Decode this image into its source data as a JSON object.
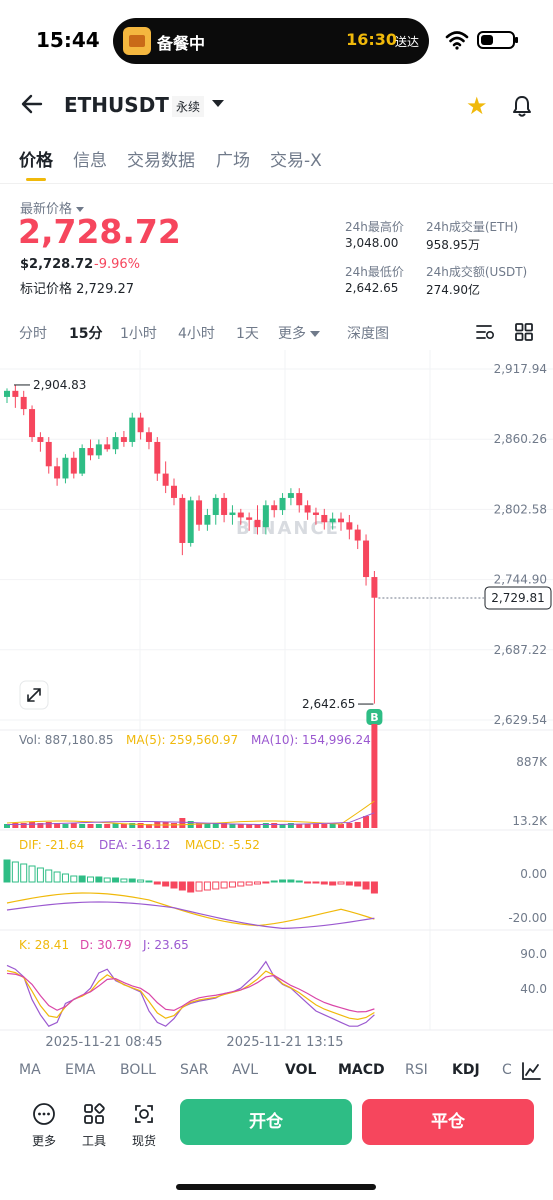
{
  "status": {
    "time": "15:44",
    "island_label": "备餐中",
    "island_time": "16:30",
    "island_send": "送达"
  },
  "header": {
    "symbol": "ETHUSDT",
    "badge": "永续"
  },
  "tabs": [
    "价格",
    "信息",
    "交易数据",
    "广场",
    "交易-X"
  ],
  "price": {
    "last_label": "最新价格",
    "last": "2,728.72",
    "usd": "$2,728.72",
    "change": "-9.96%",
    "mark_label": "标记价格 2,729.27"
  },
  "stats": {
    "high_label": "24h最高价",
    "high": "3,048.00",
    "low_label": "24h最低价",
    "low": "2,642.65",
    "vol_eth_label": "24h成交量(ETH)",
    "vol_eth": "958.95万",
    "vol_usdt_label": "24h成交额(USDT)",
    "vol_usdt": "274.90亿"
  },
  "intervals": [
    "分时",
    "15分",
    "1小时",
    "4小时",
    "1天",
    "更多",
    "深度图"
  ],
  "chart_data": {
    "type": "candlestick",
    "y_axis": [
      "2,917.94",
      "2,860.26",
      "2,802.58",
      "2,744.90",
      "2,687.22",
      "2,629.54"
    ],
    "ylim": [
      2629.54,
      2917.94
    ],
    "current_price": "2,729.81",
    "high_marker": "2,904.83",
    "low_marker": "2,642.65",
    "watermark": "BINANCE",
    "marker_letter": "B",
    "x_labels": [
      "2025-11-21 08:45",
      "2025-11-21 13:15"
    ],
    "candles": [
      [
        2895,
        2900,
        2890,
        2902
      ],
      [
        2900,
        2895,
        2886,
        2905
      ],
      [
        2895,
        2885,
        2880,
        2900
      ],
      [
        2885,
        2862,
        2858,
        2888
      ],
      [
        2862,
        2858,
        2850,
        2866
      ],
      [
        2858,
        2838,
        2832,
        2862
      ],
      [
        2838,
        2828,
        2822,
        2845
      ],
      [
        2828,
        2845,
        2824,
        2848
      ],
      [
        2845,
        2832,
        2828,
        2850
      ],
      [
        2832,
        2853,
        2830,
        2856
      ],
      [
        2853,
        2847,
        2843,
        2860
      ],
      [
        2847,
        2856,
        2844,
        2860
      ],
      [
        2856,
        2852,
        2850,
        2862
      ],
      [
        2852,
        2862,
        2848,
        2866
      ],
      [
        2862,
        2858,
        2854,
        2867
      ],
      [
        2858,
        2878,
        2854,
        2882
      ],
      [
        2878,
        2866,
        2860,
        2882
      ],
      [
        2866,
        2858,
        2852,
        2870
      ],
      [
        2858,
        2832,
        2826,
        2862
      ],
      [
        2832,
        2822,
        2816,
        2842
      ],
      [
        2822,
        2812,
        2806,
        2828
      ],
      [
        2812,
        2775,
        2765,
        2815
      ],
      [
        2775,
        2810,
        2772,
        2813
      ],
      [
        2810,
        2790,
        2785,
        2814
      ],
      [
        2790,
        2798,
        2785,
        2803
      ],
      [
        2798,
        2812,
        2790,
        2815
      ],
      [
        2812,
        2798,
        2792,
        2816
      ],
      [
        2798,
        2800,
        2790,
        2806
      ],
      [
        2800,
        2796,
        2790,
        2803
      ],
      [
        2796,
        2794,
        2785,
        2800
      ],
      [
        2794,
        2788,
        2782,
        2806
      ],
      [
        2788,
        2806,
        2782,
        2810
      ],
      [
        2806,
        2802,
        2796,
        2810
      ],
      [
        2802,
        2812,
        2798,
        2816
      ],
      [
        2812,
        2816,
        2806,
        2820
      ],
      [
        2816,
        2806,
        2800,
        2820
      ],
      [
        2806,
        2800,
        2794,
        2810
      ],
      [
        2800,
        2798,
        2790,
        2804
      ],
      [
        2798,
        2792,
        2786,
        2803
      ],
      [
        2792,
        2795,
        2786,
        2800
      ],
      [
        2795,
        2792,
        2785,
        2800
      ],
      [
        2792,
        2786,
        2778,
        2798
      ],
      [
        2786,
        2777,
        2770,
        2790
      ],
      [
        2777,
        2747,
        2740,
        2782
      ],
      [
        2747,
        2730,
        2643,
        2752
      ]
    ],
    "volume": {
      "legend_vol": "Vol: 887,180.85",
      "legend_ma5": "MA(5): 259,560.97",
      "legend_ma10": "MA(10): 154,996.24",
      "axis_top": "887K",
      "axis_bottom": "13.2K"
    },
    "macd": {
      "legend_dif": "DIF: -21.64",
      "legend_dea": "DEA: -16.12",
      "legend_macd": "MACD: -5.52",
      "axis_top": "0.00",
      "axis_bottom": "-20.00"
    },
    "kdj": {
      "legend_k": "K: 28.41",
      "legend_d": "D: 30.79",
      "legend_j": "J: 23.65",
      "axis_top": "90.0",
      "axis_bottom": "40.0"
    }
  },
  "indicators": [
    "MA",
    "EMA",
    "BOLL",
    "SAR",
    "AVL",
    "VOL",
    "MACD",
    "RSI",
    "KDJ",
    "C"
  ],
  "bottom": {
    "more": "更多",
    "tools": "工具",
    "spot": "现货",
    "open": "开仓",
    "close": "平仓"
  },
  "colors": {
    "up": "#2ebd85",
    "down": "#f6465d",
    "accent": "#f0b90b"
  }
}
